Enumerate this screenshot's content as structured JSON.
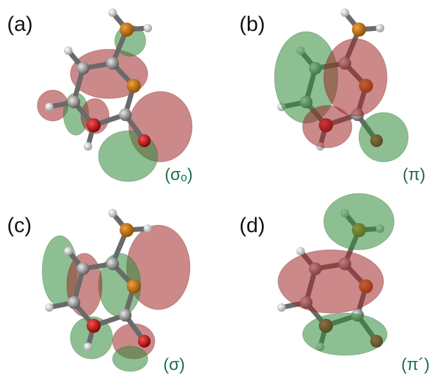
{
  "panels": [
    {
      "label": "(a)",
      "orbital": "(σₒ)"
    },
    {
      "label": "(b)",
      "orbital": "(π)"
    },
    {
      "label": "(c)",
      "orbital": "(σ)"
    },
    {
      "label": "(d)",
      "orbital": "(π´)"
    }
  ]
}
